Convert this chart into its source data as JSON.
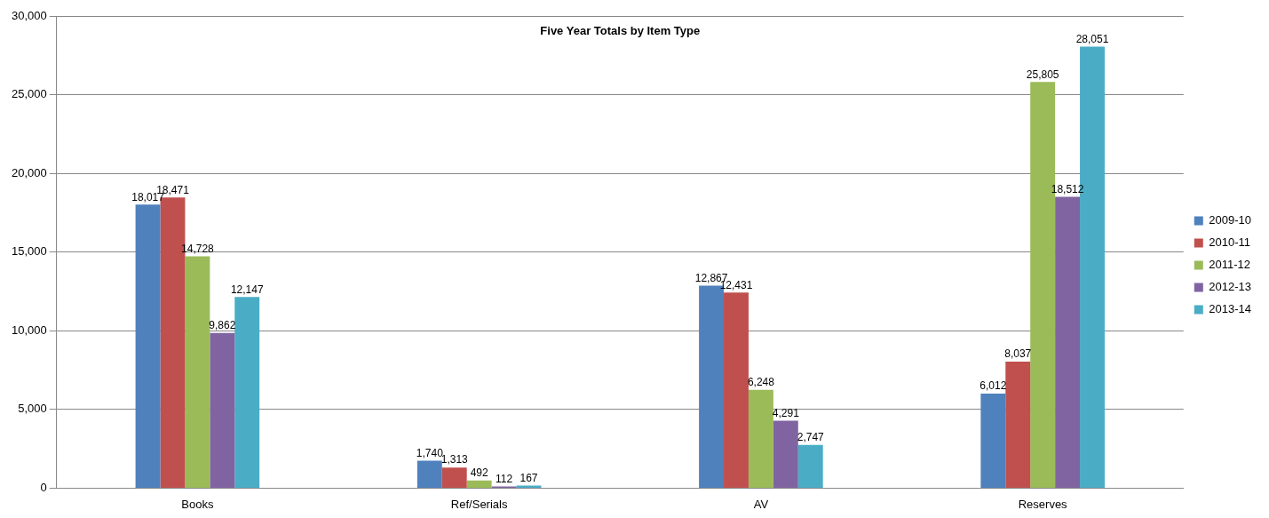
{
  "chart_data": {
    "type": "bar",
    "title": "Five Year Totals by Item Type",
    "categories": [
      "Books",
      "Ref/Serials",
      "AV",
      "Reserves"
    ],
    "series": [
      {
        "name": "2009-10",
        "color": "#4f81bd",
        "values": [
          18017,
          1740,
          12867,
          6012
        ],
        "value_labels": [
          "18,017",
          "1,740",
          "12,867",
          "6,012"
        ]
      },
      {
        "name": "2010-11",
        "color": "#c0504d",
        "values": [
          18471,
          1313,
          12431,
          8037
        ],
        "value_labels": [
          "18,471",
          "1,313",
          "12,431",
          "8,037"
        ]
      },
      {
        "name": "2011-12",
        "color": "#9bbb59",
        "values": [
          14728,
          492,
          6248,
          25805
        ],
        "value_labels": [
          "14,728",
          "492",
          "6,248",
          "25,805"
        ]
      },
      {
        "name": "2012-13",
        "color": "#8064a2",
        "values": [
          9862,
          112,
          4291,
          18512
        ],
        "value_labels": [
          "9,862",
          "112",
          "4,291",
          "18,512"
        ]
      },
      {
        "name": "2013-14",
        "color": "#4bacc6",
        "values": [
          12147,
          167,
          2747,
          28051
        ],
        "value_labels": [
          "12,147",
          "167",
          "2,747",
          "28,051"
        ]
      }
    ],
    "ylim": [
      0,
      30000
    ],
    "yticks": [
      {
        "value": 0,
        "label": "0"
      },
      {
        "value": 5000,
        "label": "5,000"
      },
      {
        "value": 10000,
        "label": "10,000"
      },
      {
        "value": 15000,
        "label": "15,000"
      },
      {
        "value": 20000,
        "label": "20,000"
      },
      {
        "value": 25000,
        "label": "25,000"
      },
      {
        "value": 30000,
        "label": "30,000"
      }
    ],
    "grid": "y",
    "legend": "right"
  }
}
